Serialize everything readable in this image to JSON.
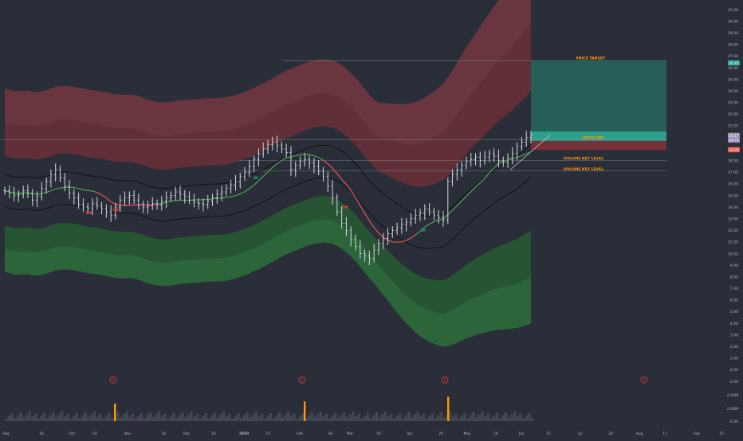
{
  "colors": {
    "background": "#2a2e39",
    "axis_text": "#b2b5be",
    "candle": "#d1d4dc",
    "band_red": "#8c3a42",
    "band_green": "#2e7d3a",
    "ma_red": "#f05a5a",
    "ma_green": "#4caf50",
    "ma_black": "#0c0e14",
    "target_zone": "#26655e",
    "neckline_zone": "#2bb59b",
    "label_orange": "#ff9800",
    "volume_spike": "#ff9800",
    "volume_base": "#4a4e59",
    "earnings_marker": "#e53935",
    "dw_label": "#f44336",
    "up_label": "#26a69a",
    "badge_teal": "#26a69a",
    "badge_purple": "#a08cc8",
    "badge_red": "#ef5350",
    "badge_gray": "#9598a1"
  },
  "chart_data": {
    "type": "candlestick",
    "symbol": "",
    "price_axis": {
      "ticks": [
        "31.00",
        "30.00",
        "29.00",
        "28.00",
        "27.00",
        "26.00",
        "25.00",
        "24.00",
        "23.00",
        "22.00",
        "21.00",
        "20.00",
        "19.00",
        "18.00",
        "17.00",
        "16.00",
        "15.00",
        "14.00",
        "13.00",
        "12.00",
        "11.00",
        "10.00",
        "9.00",
        "8.00",
        "7.00",
        "6.00",
        "5.00",
        "4.00",
        "3.00",
        "2.00",
        "1.00",
        "0.00",
        "-1.00"
      ],
      "range": [
        -1.0,
        31.0
      ]
    },
    "volume_axis": {
      "ticks": [
        "4.00M",
        "2.00M",
        "0.00"
      ]
    },
    "time_axis": {
      "labels": [
        "Sep",
        "16",
        "Oct",
        "14",
        "Nov",
        "18",
        "Dec",
        "16",
        "2020",
        "15",
        "Feb",
        "18",
        "Mar",
        "16",
        "Apr",
        "20",
        "May",
        "18",
        "Jun",
        "15",
        "Jul",
        "20",
        "Aug",
        "17",
        "Sep",
        "15"
      ]
    },
    "price_badges": [
      {
        "text": "26.45",
        "price": 26.45,
        "color": "teal"
      },
      {
        "text": "20.17",
        "price": 20.17,
        "color": "gray"
      },
      {
        "text": "19.71",
        "price": 19.71,
        "color": "purple"
      },
      {
        "text": "18.90",
        "price": 18.9,
        "color": "red"
      }
    ],
    "annotations": {
      "price_target": {
        "label": "PRICE TARGET",
        "price": 26.6
      },
      "neckline": {
        "label": "NECKLINE",
        "top": 20.5,
        "bottom": 19.7
      },
      "volume_key_levels": [
        {
          "label": "VOLUME KEY LEVEL",
          "price": 18.0
        },
        {
          "label": "VOLUME KEY LEVEL",
          "price": 17.1
        }
      ],
      "target_zone": {
        "top": 26.6,
        "bottom": 20.5
      },
      "stop_zone": {
        "top": 19.7,
        "bottom": 18.9
      }
    },
    "earnings_markers": [
      "E",
      "E",
      "E",
      "E"
    ],
    "signal_labels": [
      "DW",
      "UP",
      "DW",
      "DW",
      "UP"
    ],
    "close_series": [
      15.4,
      15.2,
      15.0,
      15.1,
      15.4,
      15.2,
      14.6,
      14.9,
      15.6,
      16.2,
      16.8,
      17.2,
      16.5,
      15.8,
      15.2,
      14.8,
      14.2,
      14.0,
      13.9,
      14.3,
      14.1,
      13.8,
      13.6,
      13.3,
      14.0,
      14.6,
      14.8,
      15.0,
      14.6,
      14.2,
      14.0,
      14.1,
      14.3,
      14.2,
      14.5,
      14.8,
      15.0,
      15.3,
      15.1,
      14.9,
      14.6,
      14.4,
      14.3,
      14.2,
      14.5,
      14.8,
      15.1,
      15.3,
      15.6,
      15.9,
      16.2,
      16.6,
      17.0,
      17.5,
      18.1,
      18.6,
      19.0,
      19.4,
      19.6,
      19.3,
      19.0,
      18.7,
      17.2,
      17.6,
      17.9,
      18.1,
      17.8,
      17.5,
      17.1,
      16.6,
      15.8,
      14.8,
      13.6,
      12.6,
      12.0,
      11.2,
      10.6,
      10.0,
      9.8,
      9.6,
      10.3,
      10.9,
      11.3,
      11.7,
      12.0,
      12.2,
      12.5,
      12.7,
      13.0,
      13.3,
      13.5,
      13.8,
      13.6,
      13.3,
      13.1,
      12.9,
      16.2,
      16.8,
      17.2,
      17.6,
      17.9,
      18.1,
      18.3,
      18.0,
      18.3,
      18.6,
      18.4,
      18.0,
      17.8,
      18.2,
      18.6,
      19.2,
      19.6,
      20.0,
      20.2
    ]
  }
}
